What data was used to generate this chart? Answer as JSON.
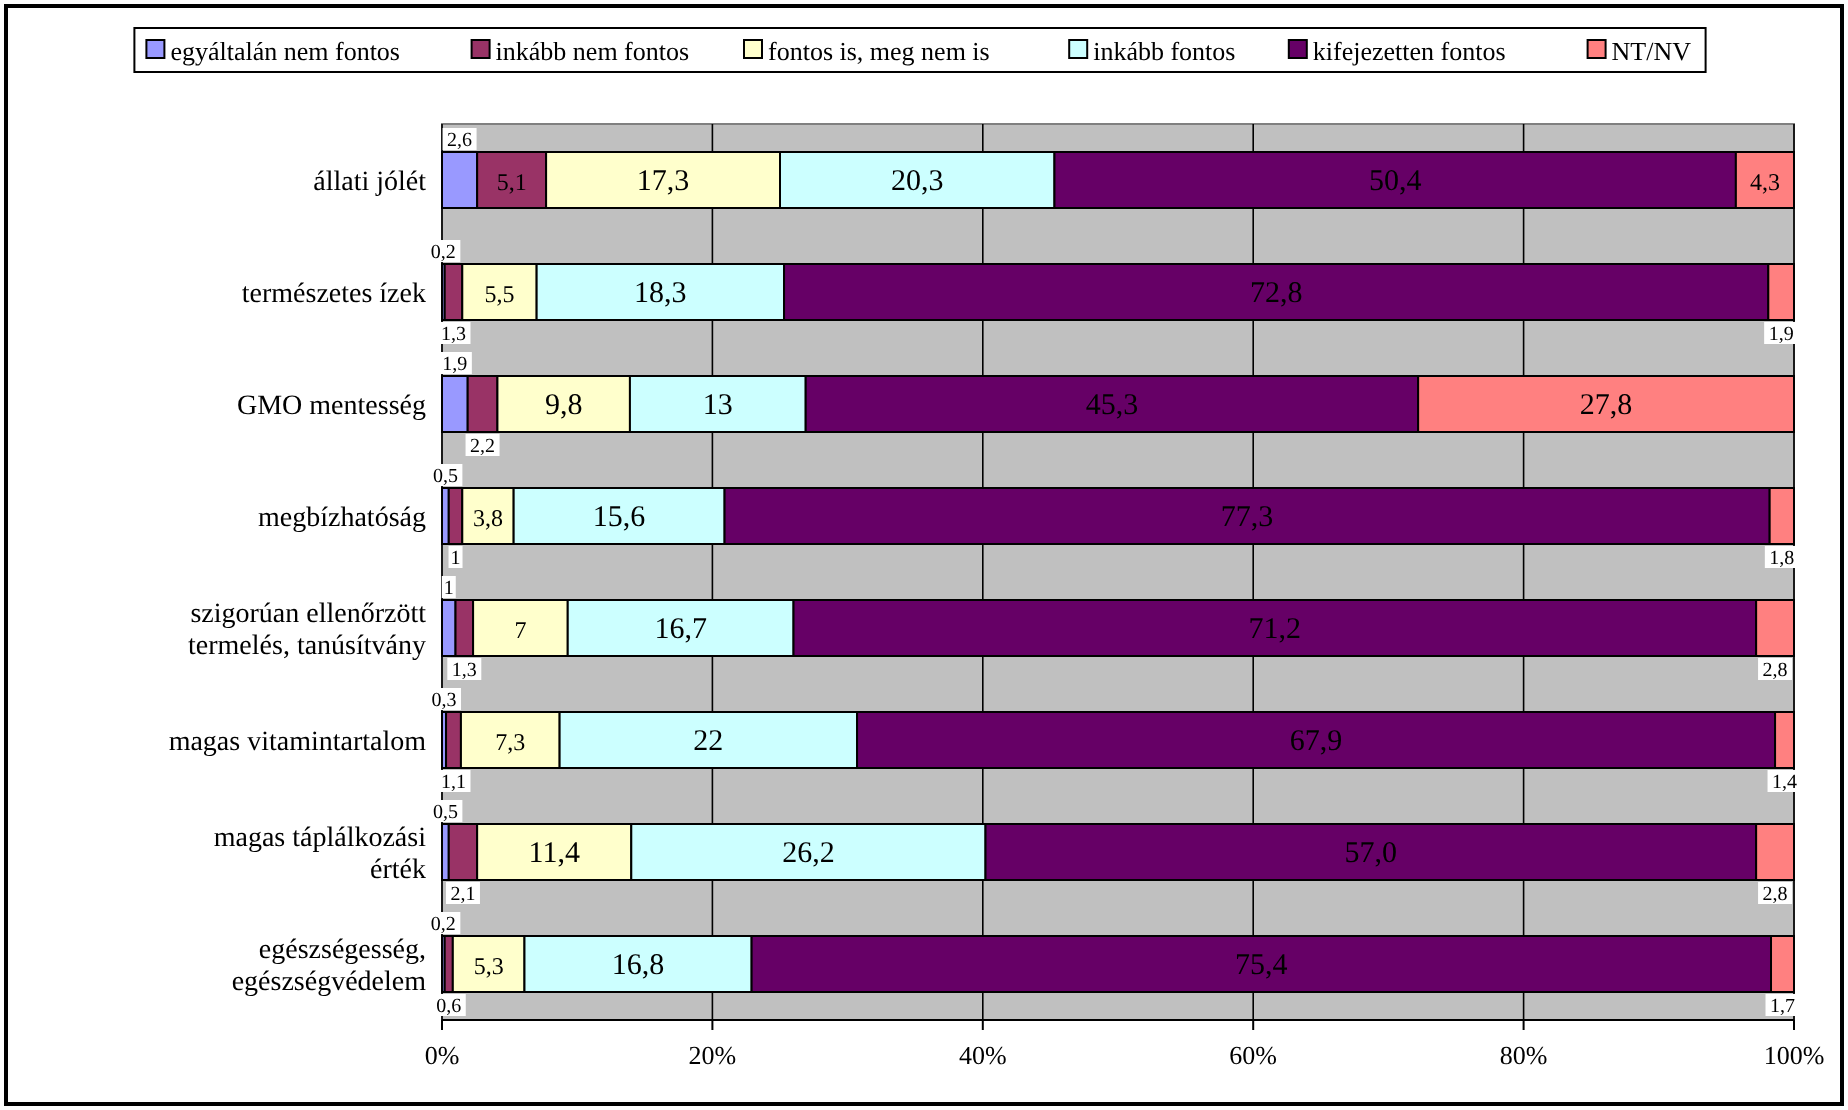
{
  "chart_data": {
    "type": "bar",
    "orientation": "horizontal",
    "stacked": true,
    "categories": [
      "állati jólét",
      "természetes ízek",
      "GMO mentesség",
      "megbízhatóság",
      "szigorúan ellenőrzött termelés, tanúsítvány",
      "magas vitamintartalom",
      "magas táplálkozási érték",
      "egészségesség, egészségvédelem"
    ],
    "series": [
      {
        "name": "egyáltalán nem fontos",
        "color": "#9999ff",
        "values": [
          2.6,
          0.2,
          1.9,
          0.5,
          1,
          0.3,
          0.5,
          0.2
        ],
        "value_labels": [
          "2,6",
          "0,2",
          "1,9",
          "0,5",
          "1",
          "0,3",
          "0,5",
          "0,2"
        ]
      },
      {
        "name": "inkább nem fontos",
        "color": "#993366",
        "values": [
          5.1,
          1.3,
          2.2,
          1,
          1.3,
          1.1,
          2.1,
          0.6
        ],
        "value_labels": [
          "5,1",
          "1,3",
          "2,2",
          "1",
          "1,3",
          "1,1",
          "2,1",
          "0,6"
        ]
      },
      {
        "name": "fontos is, meg nem is",
        "color": "#ffffcc",
        "values": [
          17.3,
          5.5,
          9.8,
          3.8,
          7,
          7.3,
          11.4,
          5.3
        ],
        "value_labels": [
          "17,3",
          "5,5",
          "9,8",
          "3,8",
          "7",
          "7,3",
          "11,4",
          "5,3"
        ]
      },
      {
        "name": "inkább fontos",
        "color": "#ccffff",
        "values": [
          20.3,
          18.3,
          13,
          15.6,
          16.7,
          22,
          26.2,
          16.8
        ],
        "value_labels": [
          "20,3",
          "18,3",
          "13",
          "15,6",
          "16,7",
          "22",
          "26,2",
          "16,8"
        ]
      },
      {
        "name": "kifejezetten fontos",
        "color": "#660066",
        "values": [
          50.4,
          72.8,
          45.3,
          77.3,
          71.2,
          67.9,
          57.0,
          75.4
        ],
        "value_labels": [
          "50,4",
          "72,8",
          "45,3",
          "77,3",
          "71,2",
          "67,9",
          "57,0",
          "75,4"
        ]
      },
      {
        "name": "NT/NV",
        "color": "#ff8080",
        "values": [
          4.3,
          1.9,
          27.8,
          1.8,
          2.8,
          1.4,
          2.8,
          1.7
        ],
        "value_labels": [
          "4,3",
          "1,9",
          "27,8",
          "1,8",
          "2,8",
          "1,4",
          "2,8",
          "1,7"
        ]
      }
    ],
    "xlim": [
      0,
      100
    ],
    "xticks": [
      {
        "value": 0,
        "label": "0%"
      },
      {
        "value": 20,
        "label": "20%"
      },
      {
        "value": 40,
        "label": "40%"
      },
      {
        "value": 60,
        "label": "60%"
      },
      {
        "value": 80,
        "label": "80%"
      },
      {
        "value": 100,
        "label": "100%"
      }
    ],
    "grid": "x",
    "legend": "top"
  }
}
